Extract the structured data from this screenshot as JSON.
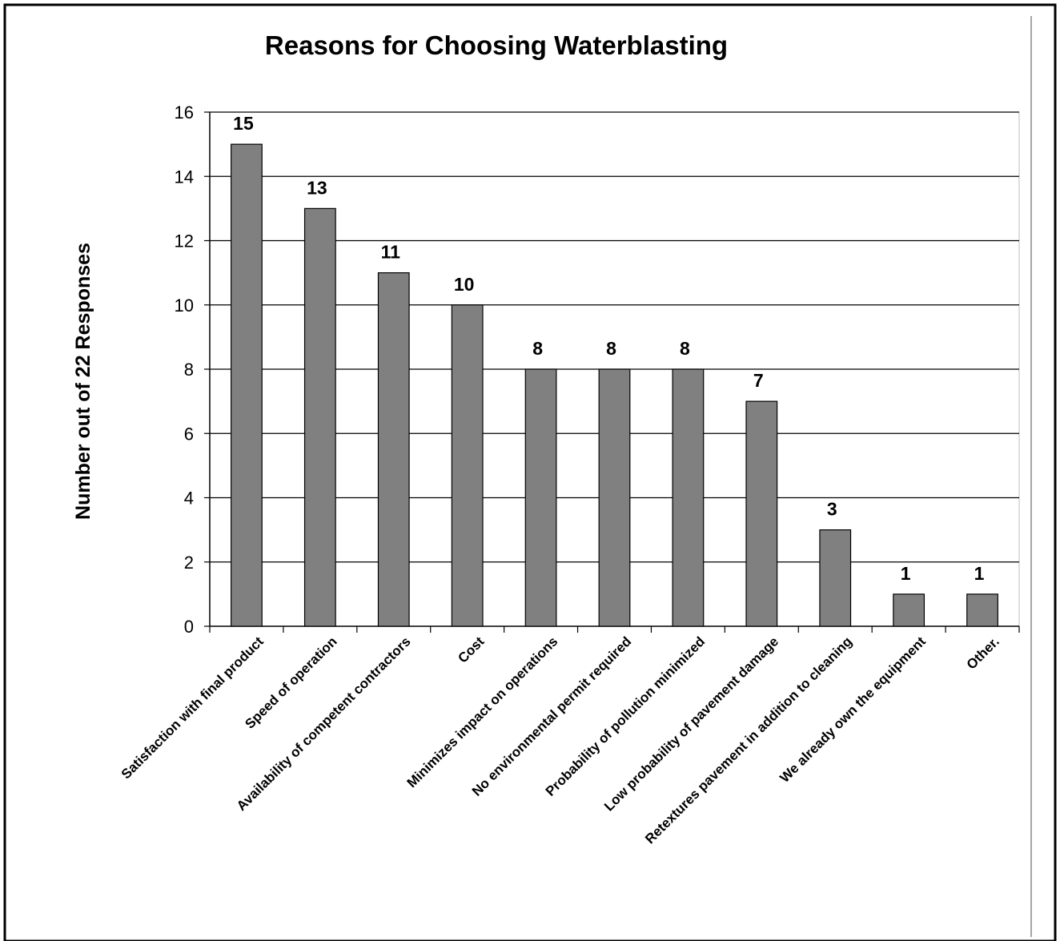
{
  "chart_data": {
    "type": "bar",
    "title": "Reasons for Choosing Waterblasting",
    "xlabel": "",
    "ylabel": "Number out of 22 Responses",
    "ylim": [
      0,
      16
    ],
    "yticks": [
      0,
      2,
      4,
      6,
      8,
      10,
      12,
      14,
      16
    ],
    "grid": true,
    "legend": "none",
    "bar_color": "#808080",
    "categories": [
      "Satisfaction with final product",
      "Speed of operation",
      "Availability of competent contractors",
      "Cost",
      "Minimizes impact on operations",
      "No environmental permit required",
      "Probability of pollution minimized",
      "Low probability of pavement damage",
      "Retextures pavement in addition to cleaning",
      "We already own the equipment",
      "Other."
    ],
    "values": [
      15,
      13,
      11,
      10,
      8,
      8,
      8,
      7,
      3,
      1,
      1
    ],
    "value_labels": [
      "15",
      "13",
      "11",
      "10",
      "8",
      "8",
      "8",
      "7",
      "3",
      "1",
      "1"
    ]
  }
}
